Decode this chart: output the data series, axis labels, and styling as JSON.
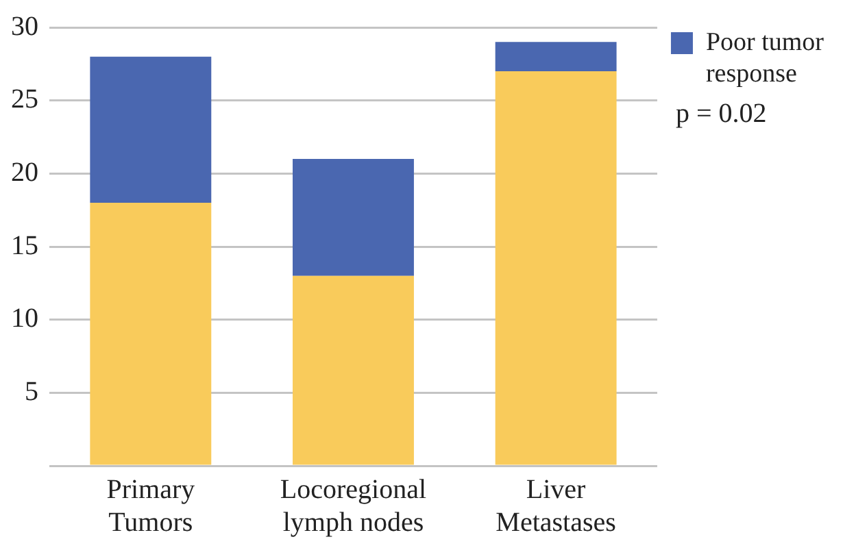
{
  "chart_data": {
    "type": "bar",
    "stacked": true,
    "categories": [
      "Primary Tumors",
      "Locoregional lymph nodes",
      "Liver Metastases"
    ],
    "series": [
      {
        "color": "#f9cb5b",
        "values": [
          18,
          13,
          27
        ]
      },
      {
        "name": "Poor tumor response",
        "color": "#4a67b0",
        "values": [
          10,
          8,
          2
        ]
      }
    ],
    "ylim": [
      0,
      30
    ],
    "yticks": [
      {
        "value": 0,
        "label": null
      },
      5,
      10,
      15,
      20,
      25,
      30
    ],
    "grid": "y",
    "legend": "top right",
    "annotations": [
      "p = 0.02"
    ]
  }
}
